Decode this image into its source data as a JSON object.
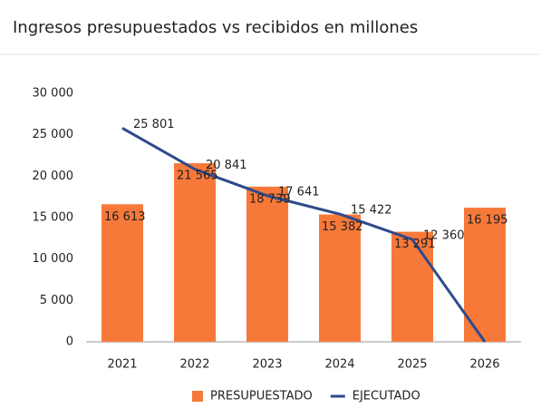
{
  "chart_data": {
    "type": "bar-line",
    "title": "Ingresos presupuestados vs recibidos en millones",
    "categories": [
      "2021",
      "2022",
      "2023",
      "2024",
      "2025",
      "2026"
    ],
    "series": [
      {
        "name": "PRESUPUESTADO",
        "type": "bar",
        "color": "#f7793a",
        "values": [
          16613,
          21565,
          18739,
          15382,
          13291,
          16195
        ],
        "value_labels": [
          "16 613",
          "21 565",
          "18 739",
          "15 382",
          "13 291",
          "16 195"
        ]
      },
      {
        "name": "EJECUTADO",
        "type": "line",
        "color": "#2e4a8c",
        "values": [
          25801,
          20841,
          17641,
          15422,
          12360,
          0
        ],
        "value_labels": [
          "25 801",
          "20 841",
          "17 641",
          "15 422",
          "12 360",
          null
        ]
      }
    ],
    "ylim": [
      0,
      30000
    ],
    "yticks": [
      0,
      {
        "value": 5000,
        "label": "5 000"
      },
      {
        "value": 10000,
        "label": "10 000"
      },
      {
        "value": 15000,
        "label": "15 000"
      },
      {
        "value": 20000,
        "label": "20 000"
      },
      {
        "value": 25000,
        "label": "25 000"
      },
      {
        "value": 30000,
        "label": "30 000"
      }
    ],
    "legend": "bottom"
  }
}
